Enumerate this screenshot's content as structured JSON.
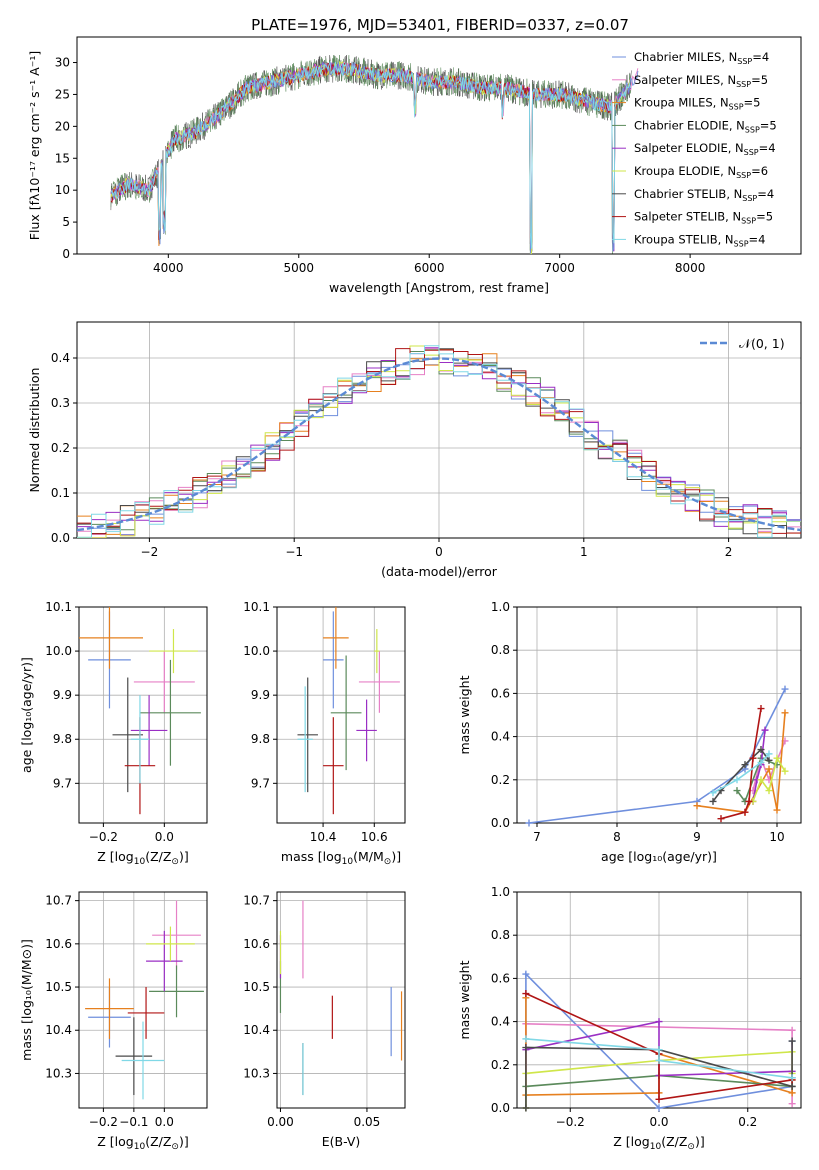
{
  "figure_title": "PLATE=1976, MJD=53401, FIBERID=0337, z=0.07",
  "series_colors": [
    "#6f8fdd",
    "#e680c6",
    "#e6801f",
    "#5b8a5b",
    "#9a2fc4",
    "#cfe64a",
    "#4a4a4a",
    "#b01515",
    "#80d8e6"
  ],
  "chart_data": [
    {
      "id": "spectrum",
      "type": "line",
      "title": "PLATE=1976, MJD=53401, FIBERID=0337, z=0.07",
      "xlabel": "wavelength [Angstrom, rest frame]",
      "ylabel": "Flux [fλ10⁻¹⁷ erg cm⁻² s⁻¹ A⁻¹]",
      "xlim": [
        3300,
        8850
      ],
      "ylim": [
        0,
        34
      ],
      "xticks": [
        4000,
        5000,
        6000,
        7000,
        8000
      ],
      "yticks": [
        0,
        5,
        10,
        15,
        20,
        25,
        30
      ],
      "grid": false,
      "legend_placement": "right",
      "legend": [
        "Chabrier MILES, N_SSP=4",
        "Salpeter MILES, N_SSP=5",
        "Kroupa MILES, N_SSP=5",
        "Chabrier ELODIE, N_SSP=5",
        "Salpeter ELODIE, N_SSP=4",
        "Kroupa ELODIE, N_SSP=6",
        "Chabrier STELIB, N_SSP=4",
        "Salpeter STELIB, N_SSP=5",
        "Kroupa STELIB, N_SSP=4"
      ],
      "legend_labels": [
        {
          "main": "Chabrier MILES, N",
          "sub": "SSP",
          "tail": "=4"
        },
        {
          "main": "Salpeter MILES, N",
          "sub": "SSP",
          "tail": "=5"
        },
        {
          "main": "Kroupa MILES, N",
          "sub": "SSP",
          "tail": "=5"
        },
        {
          "main": "Chabrier ELODIE, N",
          "sub": "SSP",
          "tail": "=5"
        },
        {
          "main": "Salpeter ELODIE, N",
          "sub": "SSP",
          "tail": "=4"
        },
        {
          "main": "Kroupa ELODIE, N",
          "sub": "SSP",
          "tail": "=6"
        },
        {
          "main": "Chabrier STELIB, N",
          "sub": "SSP",
          "tail": "=4"
        },
        {
          "main": "Salpeter STELIB, N",
          "sub": "SSP",
          "tail": "=5"
        },
        {
          "main": "Kroupa STELIB, N",
          "sub": "SSP",
          "tail": "=4"
        }
      ],
      "continuum": {
        "x": [
          3550,
          3700,
          3850,
          3950,
          4050,
          4200,
          4400,
          4600,
          4800,
          5000,
          5200,
          5400,
          5600,
          5800,
          6000,
          6200,
          6400,
          6600,
          6800,
          7000,
          7200,
          7400,
          7600
        ],
        "y": [
          9,
          11,
          10,
          14,
          18,
          19,
          22,
          26,
          27,
          28,
          29,
          29,
          28,
          28,
          27,
          27,
          26,
          26,
          25,
          25,
          24,
          23,
          28
        ]
      },
      "dips": [
        {
          "x": 3934,
          "y": 1
        },
        {
          "x": 3969,
          "y": 3
        },
        {
          "x": 5890,
          "y": 21
        },
        {
          "x": 6563,
          "y": 21
        },
        {
          "x": 6780,
          "y": 0
        },
        {
          "x": 7410,
          "y": 0
        }
      ]
    },
    {
      "id": "residuals",
      "type": "line",
      "xlabel": "(data-model)/error",
      "ylabel": "Normed distribution",
      "xlim": [
        -2.5,
        2.5
      ],
      "ylim": [
        0,
        0.48
      ],
      "xticks": [
        -2,
        -1,
        0,
        1,
        2
      ],
      "xticklabels": [
        "−2",
        "−1",
        "0",
        "1",
        "2"
      ],
      "yticks": [
        0.0,
        0.1,
        0.2,
        0.3,
        0.4
      ],
      "yticklabels": [
        "0.0",
        "0.1",
        "0.2",
        "0.3",
        "0.4"
      ],
      "grid": true,
      "legend": [
        "𝒩(0, 1)"
      ],
      "legend_placement": "top-right",
      "hist_bin_width": 0.1
    },
    {
      "id": "age-vs-z",
      "type": "scatter",
      "xlabel_main": "Z [log",
      "xlabel_sub": "10",
      "xlabel_tail": "(Z/Z",
      "xlabel_sub2": "⊙",
      "xlabel_end": ")]",
      "ylabel": "age  [log₁₀(age/yr)]",
      "xlim": [
        -0.28,
        0.14
      ],
      "ylim": [
        9.61,
        10.1
      ],
      "xticks": [
        -0.2,
        0.0
      ],
      "xticklabels": [
        "−0.2",
        "0.0"
      ],
      "yticks": [
        9.7,
        9.8,
        9.9,
        10.0,
        10.1
      ],
      "yticklabels": [
        "9.7",
        "9.8",
        "9.9",
        "10.0",
        "10.1"
      ],
      "grid": true,
      "points": [
        {
          "x": -0.18,
          "xe": 0.07,
          "y": 9.98,
          "ye": 0.11
        },
        {
          "x": 0.0,
          "xe": 0.1,
          "y": 9.93,
          "ye": 0.07
        },
        {
          "x": -0.18,
          "xe": 0.11,
          "y": 10.03,
          "ye": 0.07
        },
        {
          "x": 0.02,
          "xe": 0.1,
          "y": 9.86,
          "ye": 0.12
        },
        {
          "x": -0.05,
          "xe": 0.06,
          "y": 9.82,
          "ye": 0.08
        },
        {
          "x": 0.03,
          "xe": 0.08,
          "y": 10.0,
          "ye": 0.05
        },
        {
          "x": -0.12,
          "xe": 0.05,
          "y": 9.81,
          "ye": 0.13
        },
        {
          "x": -0.08,
          "xe": 0.05,
          "y": 9.74,
          "ye": 0.11
        },
        {
          "x": -0.08,
          "xe": 0.03,
          "y": 9.8,
          "ye": 0.1
        }
      ]
    },
    {
      "id": "age-vs-mass",
      "type": "scatter",
      "xlabel_main": "mass [log",
      "xlabel_sub": "10",
      "xlabel_tail": "(M/M",
      "xlabel_sub2": "⊙",
      "xlabel_end": ")]",
      "ylabel": "",
      "xlim": [
        10.22,
        10.72
      ],
      "ylim": [
        9.61,
        10.1
      ],
      "xticks": [
        10.4,
        10.6
      ],
      "xticklabels": [
        "10.4",
        "10.6"
      ],
      "yticks": [
        9.7,
        9.8,
        9.9,
        10.0,
        10.1
      ],
      "yticklabels": [
        "9.7",
        "9.8",
        "9.9",
        "10.0",
        "10.1"
      ],
      "grid": true,
      "points": [
        {
          "x": 10.44,
          "xe": 0.04,
          "y": 9.98,
          "ye": 0.11
        },
        {
          "x": 10.62,
          "xe": 0.08,
          "y": 9.93,
          "ye": 0.07
        },
        {
          "x": 10.45,
          "xe": 0.05,
          "y": 10.03,
          "ye": 0.07
        },
        {
          "x": 10.49,
          "xe": 0.06,
          "y": 9.86,
          "ye": 0.13
        },
        {
          "x": 10.57,
          "xe": 0.04,
          "y": 9.82,
          "ye": 0.07
        },
        {
          "x": 10.61,
          "xe": 0.01,
          "y": 10.0,
          "ye": 0.05
        },
        {
          "x": 10.34,
          "xe": 0.04,
          "y": 9.81,
          "ye": 0.13
        },
        {
          "x": 10.44,
          "xe": 0.04,
          "y": 9.74,
          "ye": 0.11
        },
        {
          "x": 10.33,
          "xe": 0.03,
          "y": 9.8,
          "ye": 0.12
        }
      ]
    },
    {
      "id": "massweight-vs-age",
      "type": "line",
      "xlabel": "age  [log₁₀(age/yr)]",
      "ylabel": "mass weight",
      "xlim": [
        6.75,
        10.3
      ],
      "ylim": [
        0,
        1
      ],
      "xticks": [
        7,
        8,
        9,
        10
      ],
      "xticklabels": [
        "7",
        "8",
        "9",
        "10"
      ],
      "yticks": [
        0.0,
        0.2,
        0.4,
        0.6,
        0.8,
        1.0
      ],
      "yticklabels": [
        "0.0",
        "0.2",
        "0.4",
        "0.6",
        "0.8",
        "1.0"
      ],
      "grid": true,
      "series": [
        {
          "name": "Chabrier MILES",
          "x": [
            6.9,
            9.0,
            9.6,
            10.1
          ],
          "y": [
            0.0,
            0.1,
            0.25,
            0.62
          ]
        },
        {
          "name": "Salpeter MILES",
          "x": [
            9.7,
            9.8,
            9.9,
            10.1
          ],
          "y": [
            0.15,
            0.3,
            0.2,
            0.38
          ]
        },
        {
          "name": "Kroupa MILES",
          "x": [
            9.0,
            9.6,
            9.9,
            10.0,
            10.1
          ],
          "y": [
            0.08,
            0.05,
            0.25,
            0.06,
            0.51
          ]
        },
        {
          "name": "Chabrier ELODIE",
          "x": [
            9.5,
            9.6,
            9.8,
            10.0
          ],
          "y": [
            0.15,
            0.1,
            0.3,
            0.27
          ]
        },
        {
          "name": "Salpeter ELODIE",
          "x": [
            9.7,
            9.75,
            9.8,
            9.85
          ],
          "y": [
            0.1,
            0.2,
            0.27,
            0.43
          ]
        },
        {
          "name": "Kroupa ELODIE",
          "x": [
            9.7,
            9.8,
            9.9,
            10.0,
            10.1
          ],
          "y": [
            0.1,
            0.2,
            0.15,
            0.3,
            0.24
          ]
        },
        {
          "name": "Chabrier STELIB",
          "x": [
            9.2,
            9.3,
            9.6,
            9.8,
            9.9
          ],
          "y": [
            0.1,
            0.15,
            0.27,
            0.34,
            0.29
          ]
        },
        {
          "name": "Salpeter STELIB",
          "x": [
            9.3,
            9.6,
            9.65,
            9.7,
            9.8
          ],
          "y": [
            0.02,
            0.05,
            0.1,
            0.3,
            0.53
          ]
        },
        {
          "name": "Kroupa STELIB",
          "x": [
            9.2,
            9.5,
            9.8,
            9.9
          ],
          "y": [
            0.14,
            0.2,
            0.28,
            0.32
          ]
        }
      ]
    },
    {
      "id": "mass-vs-z",
      "type": "scatter",
      "xlabel_main": "Z [log",
      "xlabel_sub": "10",
      "xlabel_tail": "(Z/Z",
      "xlabel_sub2": "⊙",
      "xlabel_end": ")]",
      "ylabel": "mass [log₁₀(M/M⊙)]",
      "xlim": [
        -0.28,
        0.14
      ],
      "ylim": [
        10.22,
        10.72
      ],
      "xticks": [
        -0.2,
        -0.1,
        0.0
      ],
      "xticklabels": [
        "−0.2",
        "−0.1",
        "0.0"
      ],
      "yticks": [
        10.3,
        10.4,
        10.5,
        10.6,
        10.7
      ],
      "yticklabels": [
        "10.3",
        "10.4",
        "10.5",
        "10.6",
        "10.7"
      ],
      "grid": true,
      "points": [
        {
          "x": -0.18,
          "xe": 0.07,
          "y": 10.43,
          "ye": 0.07
        },
        {
          "x": 0.04,
          "xe": 0.08,
          "y": 10.62,
          "ye": 0.08
        },
        {
          "x": -0.18,
          "xe": 0.08,
          "y": 10.45,
          "ye": 0.07
        },
        {
          "x": 0.04,
          "xe": 0.09,
          "y": 10.49,
          "ye": 0.06
        },
        {
          "x": 0.0,
          "xe": 0.06,
          "y": 10.56,
          "ye": 0.07
        },
        {
          "x": 0.02,
          "xe": 0.08,
          "y": 10.6,
          "ye": 0.04
        },
        {
          "x": -0.1,
          "xe": 0.06,
          "y": 10.34,
          "ye": 0.09
        },
        {
          "x": -0.06,
          "xe": 0.06,
          "y": 10.44,
          "ye": 0.06
        },
        {
          "x": -0.07,
          "xe": 0.07,
          "y": 10.33,
          "ye": 0.09
        }
      ]
    },
    {
      "id": "mass-vs-ebv",
      "type": "scatter",
      "xlabel": "E(B-V)",
      "ylabel": "",
      "xlim": [
        -0.002,
        0.072
      ],
      "ylim": [
        10.22,
        10.72
      ],
      "xticks": [
        0.0,
        0.05
      ],
      "xticklabels": [
        "0.00",
        "0.05"
      ],
      "yticks": [
        10.3,
        10.4,
        10.5,
        10.6,
        10.7
      ],
      "yticklabels": [
        "10.3",
        "10.4",
        "10.5",
        "10.6",
        "10.7"
      ],
      "grid": true,
      "points": [
        {
          "x": 0.064,
          "xe": 0.0,
          "y": 10.42,
          "ye": 0.08
        },
        {
          "x": 0.013,
          "xe": 0.0,
          "y": 10.61,
          "ye": 0.09
        },
        {
          "x": 0.07,
          "xe": 0.0,
          "y": 10.41,
          "ye": 0.08
        },
        {
          "x": 0.0,
          "xe": 0.0,
          "y": 10.5,
          "ye": 0.06
        },
        {
          "x": 0.0,
          "xe": 0.0,
          "y": 10.57,
          "ye": 0.05
        },
        {
          "x": 0.0,
          "xe": 0.0,
          "y": 10.58,
          "ye": 0.05
        },
        {
          "x": 0.013,
          "xe": 0.0,
          "y": 10.31,
          "ye": 0.06
        },
        {
          "x": 0.03,
          "xe": 0.0,
          "y": 10.43,
          "ye": 0.05
        },
        {
          "x": 0.013,
          "xe": 0.0,
          "y": 10.31,
          "ye": 0.06
        }
      ]
    },
    {
      "id": "massweight-vs-z",
      "type": "line",
      "xlabel_main": "Z [log",
      "xlabel_sub": "10",
      "xlabel_tail": "(Z/Z",
      "xlabel_sub2": "⊙",
      "xlabel_end": ")]",
      "ylabel": "mass weight",
      "xlim": [
        -0.32,
        0.32
      ],
      "ylim": [
        0,
        1
      ],
      "xticks": [
        -0.2,
        0.0,
        0.2
      ],
      "xticklabels": [
        "−0.2",
        "0.0",
        "0.2"
      ],
      "yticks": [
        0.0,
        0.2,
        0.4,
        0.6,
        0.8,
        1.0
      ],
      "yticklabels": [
        "0.0",
        "0.2",
        "0.4",
        "0.6",
        "0.8",
        "1.0"
      ],
      "grid": true,
      "series": [
        {
          "name": "Chabrier MILES",
          "x": [
            -0.3,
            -0.3,
            0.0,
            0.3,
            0.3
          ],
          "y": [
            0.0,
            0.62,
            0.0,
            0.1,
            0.31
          ]
        },
        {
          "name": "Salpeter MILES",
          "x": [
            -0.3,
            -0.3,
            0.3,
            0.3
          ],
          "y": [
            0.0,
            0.39,
            0.36,
            0.02
          ]
        },
        {
          "name": "Kroupa MILES",
          "x": [
            -0.3,
            -0.3,
            0.0,
            0.0,
            0.3,
            0.3
          ],
          "y": [
            0.51,
            0.06,
            0.07,
            0.25,
            0.07,
            0.13
          ]
        },
        {
          "name": "Chabrier ELODIE",
          "x": [
            -0.3,
            -0.3,
            0.0,
            0.3
          ],
          "y": [
            0.0,
            0.1,
            0.15,
            0.1
          ]
        },
        {
          "name": "Salpeter ELODIE",
          "x": [
            -0.3,
            0.0,
            0.0,
            0.3,
            0.3
          ],
          "y": [
            0.27,
            0.4,
            0.15,
            0.17,
            0.14
          ]
        },
        {
          "name": "Kroupa ELODIE",
          "x": [
            -0.3,
            -0.3,
            0.0,
            0.3,
            0.3
          ],
          "y": [
            0.0,
            0.16,
            0.22,
            0.26,
            0.16
          ]
        },
        {
          "name": "Chabrier STELIB",
          "x": [
            -0.3,
            -0.3,
            0.0,
            0.3,
            0.3
          ],
          "y": [
            0.0,
            0.28,
            0.27,
            0.1,
            0.31
          ]
        },
        {
          "name": "Salpeter STELIB",
          "x": [
            -0.3,
            0.0,
            0.0,
            0.3
          ],
          "y": [
            0.53,
            0.25,
            0.04,
            0.13
          ]
        },
        {
          "name": "Kroupa STELIB",
          "x": [
            -0.3,
            0.0,
            0.0,
            0.3
          ],
          "y": [
            0.32,
            0.27,
            0.22,
            0.14
          ]
        }
      ]
    }
  ]
}
